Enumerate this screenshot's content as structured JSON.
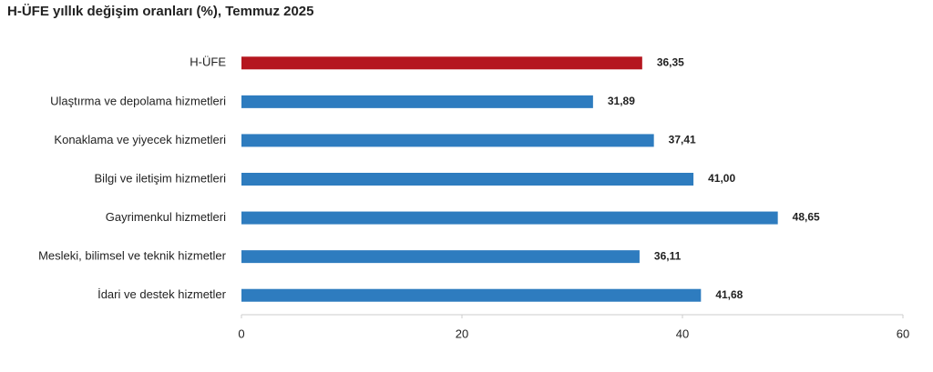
{
  "chart_data": {
    "type": "hbar",
    "title": "H-ÜFE yıllık değişim oranları (%), Temmuz 2025",
    "categories": [
      "H-ÜFE",
      "Ulaştırma ve depolama hizmetleri",
      "Konaklama ve yiyecek hizmetleri",
      "Bilgi ve iletişim hizmetleri",
      "Gayrimenkul hizmetleri",
      "Mesleki, bilimsel ve teknik hizmetler",
      "İdari ve destek hizmetler"
    ],
    "values": [
      36.35,
      31.89,
      37.41,
      41.0,
      48.65,
      36.11,
      41.68
    ],
    "value_labels": [
      "36,35",
      "31,89",
      "37,41",
      "41,00",
      "48,65",
      "36,11",
      "41,68"
    ],
    "colors": [
      "#b5161f",
      "#2e7cbf",
      "#2e7cbf",
      "#2e7cbf",
      "#2e7cbf",
      "#2e7cbf",
      "#2e7cbf"
    ],
    "xlim": [
      0,
      60
    ],
    "xticks": [
      0,
      20,
      40,
      60
    ]
  }
}
